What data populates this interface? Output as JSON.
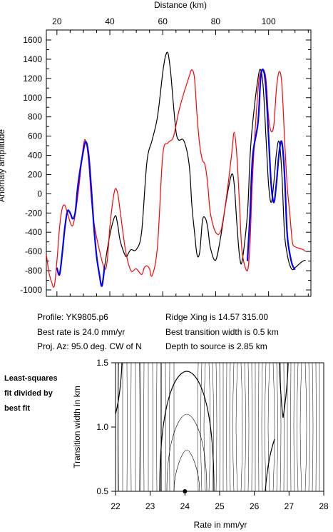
{
  "chart_data": [
    {
      "type": "line",
      "xlabel": "Distance (km)",
      "ylabel": "Anomaly amplitude",
      "xlim": [
        16,
        116
      ],
      "ylim": [
        -1000,
        1600
      ],
      "x_ticks": [
        20,
        40,
        60,
        80,
        100
      ],
      "y_ticks": [
        -1000,
        -800,
        -600,
        -400,
        -200,
        0,
        200,
        400,
        600,
        800,
        1000,
        1200,
        1400,
        1600
      ],
      "grid": false,
      "series": [
        {
          "color": "#000000",
          "x": [
            20,
            21,
            22,
            23,
            24,
            25,
            26,
            27,
            28,
            30,
            31,
            32,
            33,
            34,
            35,
            36,
            37,
            38,
            40,
            42,
            43,
            44,
            46,
            47,
            48,
            50,
            52,
            54,
            56,
            58,
            60,
            61,
            62,
            63,
            64,
            65,
            66,
            68,
            70,
            71,
            72,
            73,
            74,
            75,
            76,
            77,
            78,
            80,
            82,
            84,
            86,
            87,
            88,
            89,
            90,
            92,
            93,
            94,
            96,
            97,
            98,
            99,
            100,
            101,
            102,
            103,
            104,
            105,
            106,
            107,
            108,
            109,
            110,
            112,
            113,
            114
          ],
          "y": [
            -770,
            -840,
            -620,
            -350,
            -180,
            -200,
            -260,
            -180,
            100,
            450,
            540,
            400,
            50,
            -350,
            -650,
            -830,
            -960,
            -760,
            -430,
            -230,
            -330,
            -500,
            -650,
            -620,
            -580,
            -580,
            -400,
            330,
            560,
            800,
            1260,
            1430,
            1460,
            1260,
            940,
            650,
            560,
            550,
            300,
            -120,
            -400,
            -640,
            -600,
            -280,
            -250,
            -350,
            -560,
            -690,
            -430,
            -70,
            200,
            100,
            -300,
            -640,
            -700,
            -210,
            390,
            740,
            1200,
            1290,
            1100,
            600,
            100,
            -90,
            120,
            430,
            540,
            220,
            -400,
            -620,
            -740,
            -790,
            -770,
            -720,
            -700,
            -690
          ]
        },
        {
          "color": "#ff0000",
          "x": [
            16,
            17,
            18,
            19,
            20,
            21,
            22,
            23,
            24,
            26,
            28,
            30,
            31,
            32,
            33,
            34,
            36,
            38,
            39,
            40,
            41,
            42,
            43,
            44,
            46,
            48,
            50,
            52,
            53,
            54,
            55,
            56,
            58,
            60,
            62,
            64,
            66,
            68,
            70,
            71,
            72,
            73,
            74,
            75,
            76,
            77,
            78,
            80,
            82,
            84,
            86,
            87,
            88,
            89,
            90,
            92,
            93,
            94,
            96,
            97,
            98,
            99,
            100,
            101,
            102,
            103,
            104,
            105,
            106,
            107,
            108,
            109,
            110,
            112,
            113,
            114
          ],
          "y": [
            -630,
            -820,
            -920,
            -960,
            -700,
            -350,
            -150,
            -120,
            -200,
            -330,
            0,
            500,
            540,
            330,
            -50,
            -300,
            -580,
            -780,
            -700,
            -350,
            -100,
            50,
            0,
            -200,
            -600,
            -800,
            -780,
            -840,
            -770,
            -750,
            -780,
            -850,
            -550,
            400,
            530,
            590,
            850,
            1050,
            1220,
            1290,
            1200,
            800,
            500,
            350,
            300,
            100,
            -200,
            -400,
            -380,
            -50,
            400,
            640,
            400,
            -100,
            -600,
            -800,
            -500,
            200,
            1080,
            1260,
            1280,
            1200,
            800,
            650,
            720,
            1100,
            1270,
            1150,
            600,
            100,
            -200,
            -500,
            -550,
            -570,
            -580,
            -600
          ]
        },
        {
          "color": "#0000ff",
          "x": [
            20,
            21,
            22,
            23,
            24,
            25,
            26,
            27,
            28,
            30,
            31,
            32,
            33,
            34,
            35,
            36,
            37,
            38
          ],
          "y": [
            -770,
            -840,
            -620,
            -350,
            -180,
            -200,
            -260,
            -180,
            100,
            450,
            540,
            400,
            50,
            -350,
            -650,
            -830,
            -960,
            -760
          ]
        },
        {
          "color": "#0000ff",
          "x": [
            92,
            93,
            94,
            96,
            97,
            98,
            99,
            100,
            101,
            102,
            103,
            104,
            105,
            106,
            107,
            108,
            109,
            110
          ],
          "y": [
            -700,
            -210,
            390,
            740,
            1200,
            1290,
            1100,
            600,
            100,
            -90,
            120,
            430,
            540,
            220,
            -400,
            -620,
            -740,
            -790
          ]
        }
      ]
    },
    {
      "type": "contour",
      "xlabel": "Rate in mm/yr",
      "ylabel": "Transition width in km",
      "xlim": [
        22,
        28
      ],
      "ylim": [
        0.5,
        1.5
      ],
      "x_ticks": [
        22,
        23,
        24,
        25,
        26,
        27,
        28
      ],
      "y_ticks": [
        0.5,
        1.0,
        1.5
      ],
      "best_fit_point": {
        "x": 24.0,
        "y": 0.5
      },
      "grid": false
    }
  ],
  "info": {
    "profile": "Profile: YK9805.p6",
    "best_rate": "Best rate is 24.0 mm/yr",
    "proj_az": "Proj. Az: 95.0 deg. CW of N",
    "ridge_xing": "Ridge Xing is 14.57 315.00",
    "best_transition": "Best transition width is 0.5 km",
    "depth": "Depth to source is   2.85 km"
  },
  "side_label": {
    "line1": "Least-squares",
    "line2": "fit divided by",
    "line3": "best fit"
  }
}
